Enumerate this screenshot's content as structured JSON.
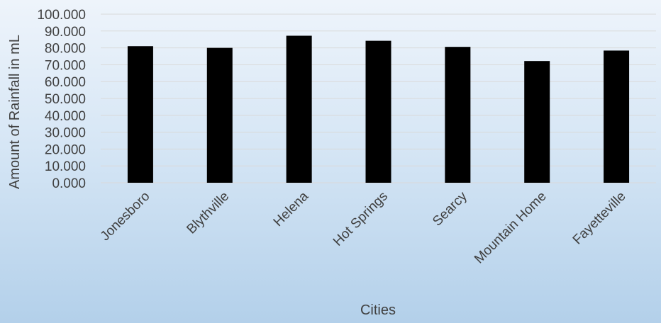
{
  "chart_data": {
    "type": "bar",
    "categories": [
      "Jonesboro",
      "Blythville",
      "Helena",
      "Hot Springs",
      "Searcy",
      "Mountain Home",
      "Fayetteville"
    ],
    "series": [
      {
        "values": [
          81.0,
          80.0,
          87.2,
          84.2,
          80.6,
          72.2,
          78.4
        ]
      }
    ],
    "title": "",
    "xlabel": "Cities",
    "ylabel": "Amount of Rainfall in mL",
    "ylim": [
      0,
      100
    ],
    "ytick_step": 10,
    "ytick_labels": [
      "0.000",
      "10.000",
      "20.000",
      "30.000",
      "40.000",
      "50.000",
      "60.000",
      "70.000",
      "80.000",
      "90.000",
      "100.000"
    ],
    "grid": true,
    "legend": "none",
    "colors": {
      "bar": "#000000",
      "grid": "#d9d9d9",
      "text": "#404040",
      "background_top": "#eef4fb",
      "background_bottom": "#b3d0ea"
    }
  }
}
